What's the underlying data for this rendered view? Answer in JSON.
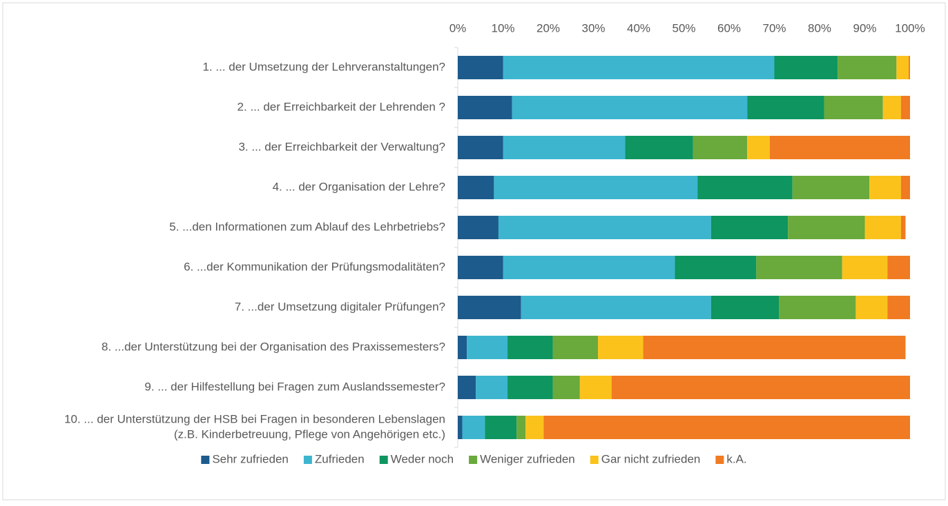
{
  "chart_data": {
    "type": "stacked_barh",
    "categories": [
      "1. ... der Umsetzung der Lehrveranstaltungen?",
      "2. ... der Erreichbarkeit der Lehrenden ?",
      "3. ... der Erreichbarkeit der Verwaltung?",
      "4. ... der Organisation der Lehre?",
      "5. ...den Informationen zum Ablauf des Lehrbetriebs?",
      "6. ...der Kommunikation der Prüfungsmodalitäten?",
      "7. ...der Umsetzung digitaler Prüfungen?",
      "8. ...der Unterstützung bei der Organisation des Praxissemesters?",
      "9. ... der Hilfestellung bei Fragen zum Auslandssemester?",
      [
        "10. ... der Unterstützung der HSB bei Fragen in besonderen Lebenslagen",
        "(z.B. Kinderbetreuung, Pflege von Angehörigen etc.)"
      ]
    ],
    "series": [
      {
        "name": "Sehr zufrieden",
        "color": "#1d5b8c",
        "values": [
          10,
          12,
          10,
          8,
          9,
          10,
          14,
          2,
          4,
          1
        ]
      },
      {
        "name": "Zufrieden",
        "color": "#3db5cf",
        "values": [
          60,
          52,
          27,
          45,
          47,
          38,
          42,
          9,
          7,
          5
        ]
      },
      {
        "name": "Weder noch",
        "color": "#0e9560",
        "values": [
          14,
          17,
          15,
          21,
          17,
          18,
          15,
          10,
          10,
          7
        ]
      },
      {
        "name": "Weniger zufrieden",
        "color": "#6aa93c",
        "values": [
          13,
          13,
          12,
          17,
          17,
          19,
          17,
          10,
          6,
          2
        ]
      },
      {
        "name": "Gar nicht zufrieden",
        "color": "#fbc21c",
        "values": [
          2.7,
          4,
          5,
          7,
          8,
          10,
          7,
          10,
          7,
          4
        ]
      },
      {
        "name": "k.A.",
        "color": "#f07b22",
        "values": [
          0.3,
          2,
          31,
          2,
          1,
          5,
          5,
          58,
          66,
          81
        ]
      }
    ],
    "xlim": [
      0,
      100
    ],
    "xticks": [
      {
        "value": 0,
        "label": "0%"
      },
      {
        "value": 10,
        "label": "10%"
      },
      {
        "value": 20,
        "label": "20%"
      },
      {
        "value": 30,
        "label": "30%"
      },
      {
        "value": 40,
        "label": "40%"
      },
      {
        "value": 50,
        "label": "50%"
      },
      {
        "value": 60,
        "label": "60%"
      },
      {
        "value": 70,
        "label": "70%"
      },
      {
        "value": 80,
        "label": "80%"
      },
      {
        "value": 90,
        "label": "90%"
      },
      {
        "value": 100,
        "label": "100%"
      }
    ],
    "legend": "bottom"
  }
}
